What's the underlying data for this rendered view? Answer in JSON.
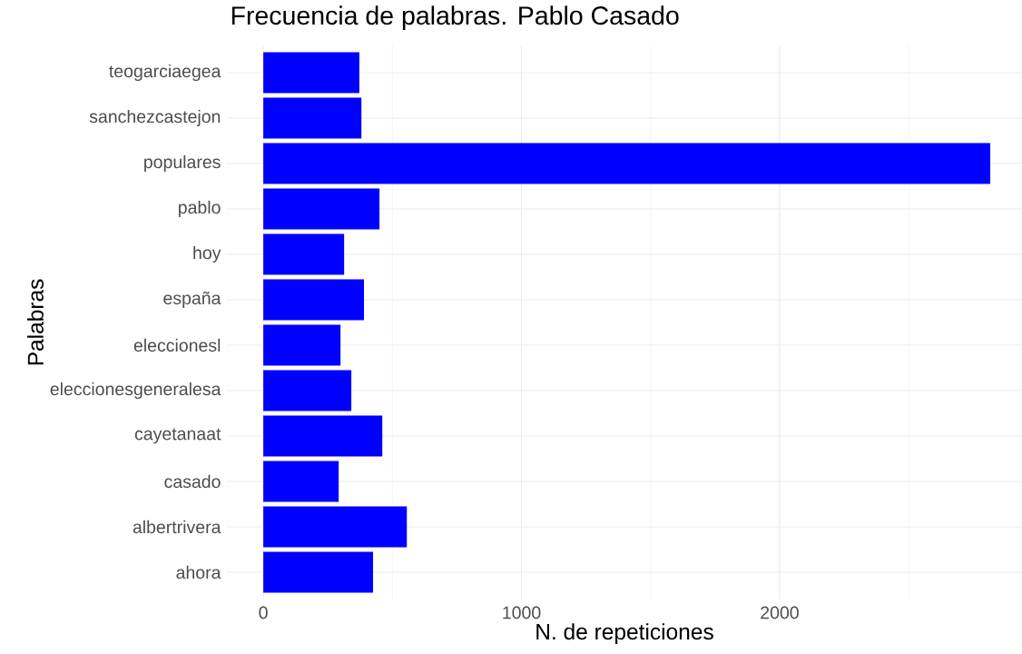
{
  "chart_data": {
    "type": "bar",
    "orientation": "horizontal",
    "title": "Frecuencia de palabras. Pablo Casado",
    "xlabel": "N. de repeticiones",
    "ylabel": "Palabras",
    "categories": [
      "teogarciaegea",
      "sanchezcastejon",
      "populares",
      "pablo",
      "hoy",
      "españa",
      "eleccionesl",
      "eleccionesgeneralesa",
      "cayetanaat",
      "casado",
      "albertrivera",
      "ahora"
    ],
    "values": [
      372,
      380,
      2816,
      450,
      313,
      390,
      299,
      341,
      461,
      292,
      556,
      425
    ],
    "color": "#0000ff",
    "xlim": [
      -141,
      2939
    ],
    "xticks": [
      0,
      {
        "value": 500,
        "label": null
      },
      1000,
      {
        "value": 1500,
        "label": null
      },
      2000,
      {
        "value": 2500,
        "label": null
      }
    ],
    "grid": true
  }
}
